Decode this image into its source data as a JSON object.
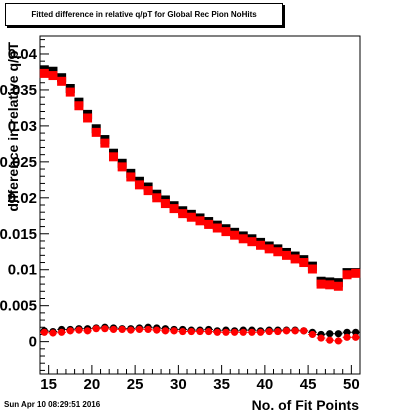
{
  "title": "Fitted difference in relative q/pT for Global Rec Pion NoHits",
  "timestamp": "Sun Apr 10 08:29:51 2016",
  "chart_data": {
    "type": "scatter",
    "xlabel": "No. of Fit Points",
    "ylabel": "difference in relative q/pT",
    "xlim": [
      14,
      51
    ],
    "ylim": [
      -0.0045,
      0.0425
    ],
    "x_ticks": [
      15,
      20,
      25,
      30,
      35,
      40,
      45,
      50
    ],
    "x_tick_labels": [
      "15",
      "20",
      "25",
      "30",
      "35",
      "40",
      "45",
      "50"
    ],
    "y_ticks": [
      0,
      0.005,
      0.01,
      0.015,
      0.02,
      0.025,
      0.03,
      0.035,
      0.04
    ],
    "y_tick_labels": [
      "0",
      "0.005",
      "0.01",
      "0.015",
      "0.02",
      "0.025",
      "0.03",
      "0.035",
      "0.04"
    ],
    "x": [
      14.5,
      15.5,
      16.5,
      17.5,
      18.5,
      19.5,
      20.5,
      21.5,
      22.5,
      23.5,
      24.5,
      25.5,
      26.5,
      27.5,
      28.5,
      29.5,
      30.5,
      31.5,
      32.5,
      33.5,
      34.5,
      35.5,
      36.5,
      37.5,
      38.5,
      39.5,
      40.5,
      41.5,
      42.5,
      43.5,
      44.5,
      45.5,
      46.5,
      47.5,
      48.5,
      49.5,
      50.5
    ],
    "series": [
      {
        "marker": "square",
        "color": "#000000",
        "values": [
          0.0378,
          0.0376,
          0.0367,
          0.0352,
          0.0333,
          0.0316,
          0.0296,
          0.0281,
          0.0262,
          0.0248,
          0.0234,
          0.0223,
          0.0215,
          0.0205,
          0.0197,
          0.0189,
          0.0182,
          0.0177,
          0.0172,
          0.0167,
          0.0162,
          0.0157,
          0.0152,
          0.0147,
          0.0143,
          0.0138,
          0.0133,
          0.0129,
          0.0124,
          0.0119,
          0.0114,
          0.0105,
          0.0084,
          0.0083,
          0.0082,
          0.0096,
          0.0096
        ]
      },
      {
        "marker": "square",
        "color": "#ff0000",
        "values": [
          0.0373,
          0.037,
          0.0362,
          0.0347,
          0.0328,
          0.0311,
          0.0291,
          0.0276,
          0.0257,
          0.0243,
          0.0229,
          0.0218,
          0.021,
          0.02,
          0.0192,
          0.0185,
          0.0178,
          0.0173,
          0.0168,
          0.0163,
          0.0158,
          0.0153,
          0.0148,
          0.0143,
          0.0139,
          0.0134,
          0.0129,
          0.0125,
          0.012,
          0.0115,
          0.011,
          0.0101,
          0.008,
          0.0079,
          0.0077,
          0.0093,
          0.0095
        ]
      },
      {
        "marker": "circle",
        "color": "#000000",
        "values": [
          0.0015,
          0.0014,
          0.0017,
          0.0017,
          0.0018,
          0.0018,
          0.0019,
          0.002,
          0.0019,
          0.0018,
          0.0018,
          0.0019,
          0.002,
          0.0019,
          0.0018,
          0.0017,
          0.0017,
          0.0016,
          0.0016,
          0.0017,
          0.0015,
          0.0016,
          0.0015,
          0.0016,
          0.0016,
          0.0015,
          0.0016,
          0.0016,
          0.0016,
          0.0016,
          0.0015,
          0.0013,
          0.001,
          0.0011,
          0.0011,
          0.0013,
          0.0013
        ]
      },
      {
        "marker": "circle",
        "color": "#ff0000",
        "values": [
          0.0013,
          0.0012,
          0.0013,
          0.0015,
          0.0016,
          0.0015,
          0.0018,
          0.0018,
          0.0017,
          0.0017,
          0.0016,
          0.0017,
          0.0017,
          0.0016,
          0.0015,
          0.0015,
          0.0014,
          0.0014,
          0.0014,
          0.0014,
          0.0013,
          0.0013,
          0.0013,
          0.0013,
          0.0013,
          0.0013,
          0.0014,
          0.0014,
          0.0015,
          0.0015,
          0.0015,
          0.001,
          0.0005,
          0.0002,
          0.0001,
          0.0006,
          0.0006
        ]
      }
    ],
    "grid": false
  }
}
